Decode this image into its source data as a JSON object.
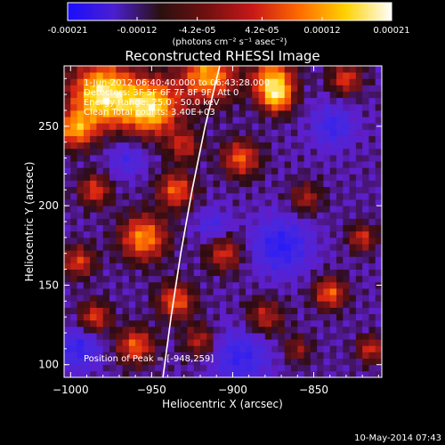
{
  "chart_data": {
    "type": "heatmap",
    "title": "Reconstructed RHESSI Image",
    "xlabel": "Heliocentric X (arcsec)",
    "ylabel": "Heliocentric Y (arcsec)",
    "xlim": [
      -1004,
      -808
    ],
    "ylim": [
      92,
      288
    ],
    "x_ticks": [
      {
        "value": -1000,
        "label": "−1000"
      },
      {
        "value": -950,
        "label": "−950"
      },
      {
        "value": -900,
        "label": "−900"
      },
      {
        "value": -850,
        "label": "−850"
      }
    ],
    "y_ticks": [
      {
        "value": 100,
        "label": "100"
      },
      {
        "value": 150,
        "label": "150"
      },
      {
        "value": 200,
        "label": "200"
      },
      {
        "value": 250,
        "label": "250"
      }
    ],
    "colorbar": {
      "range": [
        -0.00021,
        0.00021
      ],
      "tick_values": [
        -0.00021,
        -0.00012,
        -4.2e-05,
        4.2e-05,
        0.00012,
        0.00021
      ],
      "tick_labels": [
        "-0.00021",
        "-0.00012",
        "-4.2e-05",
        "4.2e-05",
        "0.00012",
        "0.00021"
      ],
      "unit_label": "(photons cm⁻² s⁻¹ asec⁻²)",
      "colors": [
        "#1a0dff",
        "#4b1fd0",
        "#2a1010",
        "#701010",
        "#c81818",
        "#ff6a00",
        "#ffd200",
        "#ffffff"
      ]
    },
    "annotations": [
      "1-Jun-2012 06:40:40.000 to 06:43:28.000",
      "Detectors: 3F 5F 6F 7F 8F 9F, Att 0",
      "Energy Range: 25.0 - 50.0 keV",
      "Clean    Total counts: 3.40E+03",
      "Position of Peak = [-948,259]"
    ],
    "limb_curve": [
      [
        -943,
        92
      ],
      [
        -938,
        130
      ],
      [
        -932,
        170
      ],
      [
        -925,
        210
      ],
      [
        -917,
        250
      ],
      [
        -908,
        288
      ]
    ],
    "peak": {
      "x": -948,
      "y": 259
    },
    "blobs": [
      {
        "x": -980,
        "y": 270,
        "amp": 1.2,
        "s": 14
      },
      {
        "x": -950,
        "y": 262,
        "amp": 1.1,
        "s": 12
      },
      {
        "x": -915,
        "y": 282,
        "amp": 0.9,
        "s": 12
      },
      {
        "x": -875,
        "y": 280,
        "amp": 0.9,
        "s": 9
      },
      {
        "x": -997,
        "y": 248,
        "amp": 0.8,
        "s": 8
      },
      {
        "x": -930,
        "y": 238,
        "amp": 0.5,
        "s": 7
      },
      {
        "x": -985,
        "y": 210,
        "amp": 0.6,
        "s": 7
      },
      {
        "x": -935,
        "y": 210,
        "amp": 0.7,
        "s": 8
      },
      {
        "x": -895,
        "y": 230,
        "amp": 0.7,
        "s": 8
      },
      {
        "x": -873,
        "y": 268,
        "amp": 0.8,
        "s": 7
      },
      {
        "x": -830,
        "y": 280,
        "amp": 0.6,
        "s": 7
      },
      {
        "x": -955,
        "y": 180,
        "amp": 0.85,
        "s": 10
      },
      {
        "x": -995,
        "y": 165,
        "amp": 0.6,
        "s": 7
      },
      {
        "x": -905,
        "y": 170,
        "amp": 0.55,
        "s": 8
      },
      {
        "x": -855,
        "y": 205,
        "amp": 0.45,
        "s": 7
      },
      {
        "x": -820,
        "y": 180,
        "amp": 0.55,
        "s": 6
      },
      {
        "x": -935,
        "y": 140,
        "amp": 0.7,
        "s": 8
      },
      {
        "x": -985,
        "y": 130,
        "amp": 0.6,
        "s": 7
      },
      {
        "x": -880,
        "y": 130,
        "amp": 0.5,
        "s": 8
      },
      {
        "x": -840,
        "y": 145,
        "amp": 0.7,
        "s": 7
      },
      {
        "x": -815,
        "y": 110,
        "amp": 0.55,
        "s": 6
      },
      {
        "x": -960,
        "y": 112,
        "amp": 0.7,
        "s": 8
      },
      {
        "x": -920,
        "y": 115,
        "amp": 0.5,
        "s": 7
      },
      {
        "x": -860,
        "y": 110,
        "amp": 0.4,
        "s": 6
      },
      {
        "x": -870,
        "y": 175,
        "amp": -0.6,
        "s": 12
      },
      {
        "x": -895,
        "y": 105,
        "amp": -0.5,
        "s": 12
      },
      {
        "x": -995,
        "y": 110,
        "amp": -0.5,
        "s": 9
      },
      {
        "x": -838,
        "y": 250,
        "amp": -0.45,
        "s": 9
      },
      {
        "x": -965,
        "y": 230,
        "amp": -0.35,
        "s": 8
      },
      {
        "x": -912,
        "y": 188,
        "amp": -0.35,
        "s": 7
      }
    ]
  },
  "footer": {
    "timestamp": "10-May-2014 07:43"
  }
}
